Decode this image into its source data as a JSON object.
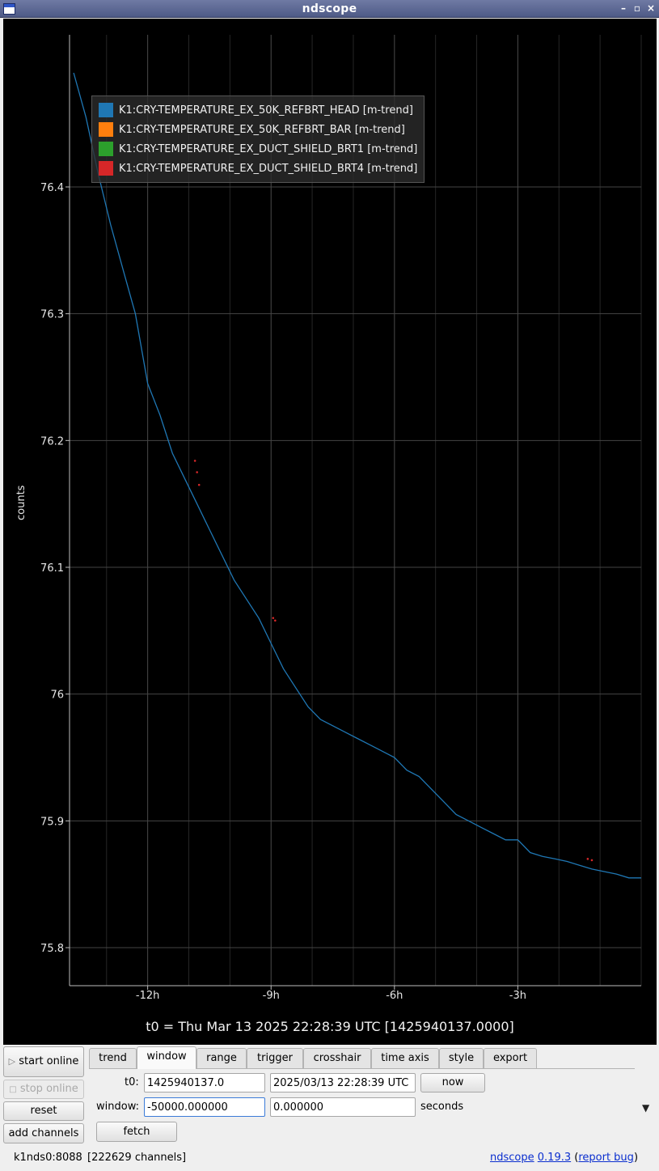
{
  "window": {
    "title": "ndscope"
  },
  "legend": [
    {
      "label": "K1:CRY-TEMPERATURE_EX_50K_REFBRT_HEAD [m-trend]",
      "color": "#1f77b4"
    },
    {
      "label": "K1:CRY-TEMPERATURE_EX_50K_REFBRT_BAR [m-trend]",
      "color": "#ff7f0e"
    },
    {
      "label": "K1:CRY-TEMPERATURE_EX_DUCT_SHIELD_BRT1 [m-trend]",
      "color": "#2ca02c"
    },
    {
      "label": "K1:CRY-TEMPERATURE_EX_DUCT_SHIELD_BRT4 [m-trend]",
      "color": "#d62728"
    }
  ],
  "plot": {
    "ylabel": "counts",
    "t0_caption": "t0 = Thu Mar 13 2025 22:28:39 UTC [1425940137.0000]"
  },
  "chart_data": {
    "type": "line",
    "title": "",
    "xlabel": "",
    "ylabel": "counts",
    "x_unit": "hours relative to t0",
    "xlim": [
      -13.9,
      0
    ],
    "ylim": [
      75.77,
      76.52
    ],
    "x_ticks": [
      -12,
      -9,
      -6,
      -3
    ],
    "x_tick_labels": [
      "-12h",
      "-9h",
      "-6h",
      "-3h"
    ],
    "y_ticks": [
      75.8,
      75.9,
      76,
      76.1,
      76.2,
      76.3,
      76.4
    ],
    "y_tick_labels": [
      "75.8",
      "75.9",
      "76",
      "76.1",
      "76.2",
      "76.3",
      "76.4"
    ],
    "grid": true,
    "legend_position": "top-left",
    "series": [
      {
        "name": "K1:CRY-TEMPERATURE_EX_50K_REFBRT_HEAD [m-trend]",
        "color": "#1f77b4",
        "x": [
          -13.8,
          -13.5,
          -13.2,
          -12.9,
          -12.6,
          -12.3,
          -12.0,
          -11.7,
          -11.4,
          -11.1,
          -10.8,
          -10.5,
          -10.2,
          -9.9,
          -9.6,
          -9.3,
          -9.0,
          -8.7,
          -8.4,
          -8.1,
          -7.8,
          -7.5,
          -7.2,
          -6.9,
          -6.6,
          -6.3,
          -6.0,
          -5.7,
          -5.4,
          -5.1,
          -4.8,
          -4.5,
          -4.2,
          -3.9,
          -3.6,
          -3.3,
          -3.0,
          -2.7,
          -2.4,
          -2.1,
          -1.8,
          -1.5,
          -1.2,
          -0.9,
          -0.6,
          -0.3,
          0.0
        ],
        "y": [
          76.49,
          76.455,
          76.41,
          76.37,
          76.335,
          76.3,
          76.245,
          76.22,
          76.19,
          76.17,
          76.15,
          76.13,
          76.11,
          76.09,
          76.075,
          76.06,
          76.04,
          76.02,
          76.005,
          75.99,
          75.98,
          75.975,
          75.97,
          75.965,
          75.96,
          75.955,
          75.95,
          75.94,
          75.935,
          75.925,
          75.915,
          75.905,
          75.9,
          75.895,
          75.89,
          75.885,
          75.885,
          75.875,
          75.872,
          75.87,
          75.868,
          75.865,
          75.862,
          75.86,
          75.858,
          75.855,
          75.855
        ]
      },
      {
        "name": "K1:CRY-TEMPERATURE_EX_50K_REFBRT_BAR [m-trend]",
        "color": "#ff7f0e",
        "x": [],
        "y": []
      },
      {
        "name": "K1:CRY-TEMPERATURE_EX_DUCT_SHIELD_BRT1 [m-trend]",
        "color": "#2ca02c",
        "x": [],
        "y": []
      },
      {
        "name": "K1:CRY-TEMPERATURE_EX_DUCT_SHIELD_BRT4 [m-trend]",
        "color": "#d62728",
        "x": [
          -10.85,
          -10.8,
          -10.75,
          -8.95,
          -8.9,
          -1.3,
          -1.2
        ],
        "y": [
          76.184,
          76.175,
          76.165,
          76.06,
          76.058,
          75.87,
          75.869
        ]
      }
    ]
  },
  "sidebar": {
    "start_online": "start online",
    "stop_online": "stop online",
    "reset": "reset",
    "add_channels": "add channels"
  },
  "tabs": [
    "trend",
    "window",
    "range",
    "trigger",
    "crosshair",
    "time axis",
    "style",
    "export"
  ],
  "window_tab": {
    "t0_label": "t0:",
    "t0_gps": "1425940137.0",
    "t0_utc": "2025/03/13 22:28:39 UTC",
    "now_label": "now",
    "window_label": "window:",
    "window_start": "-50000.000000",
    "window_end": "0.000000",
    "seconds_label": "seconds",
    "fetch_label": "fetch"
  },
  "status": {
    "server": "k1nds0:8088",
    "channels": "[222629 channels]",
    "app_link": "ndscope",
    "version_link": "0.19.3",
    "bug_link": "report bug",
    "paren_open": "(",
    "paren_close": ")"
  }
}
